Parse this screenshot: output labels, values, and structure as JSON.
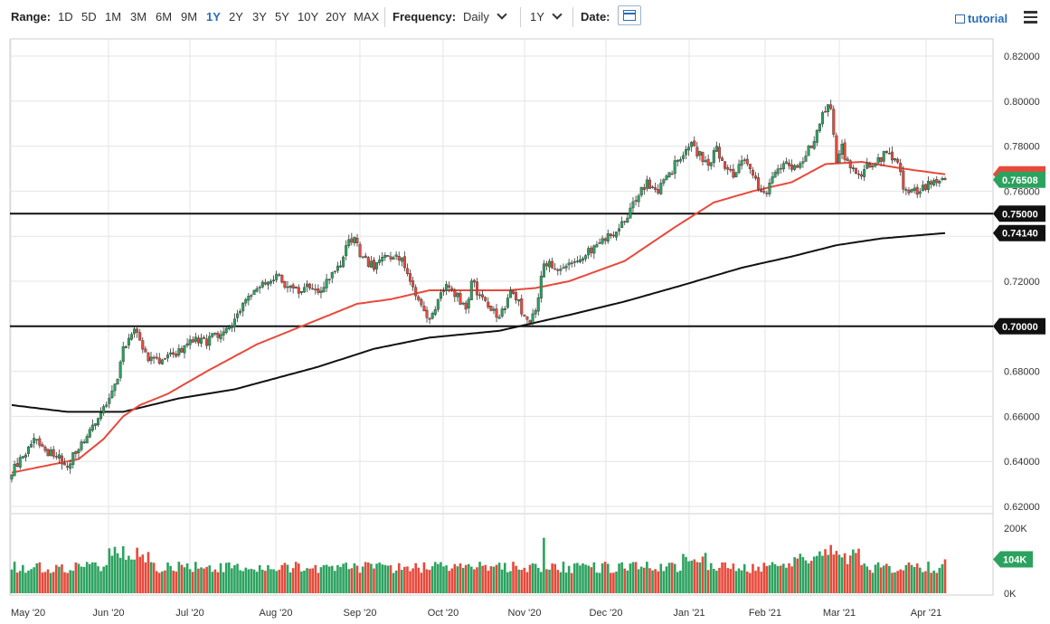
{
  "toolbar": {
    "range_label": "Range:",
    "ranges": [
      "1D",
      "5D",
      "1M",
      "3M",
      "6M",
      "9M",
      "1Y",
      "2Y",
      "3Y",
      "5Y",
      "10Y",
      "20Y",
      "MAX"
    ],
    "active_range": "1Y",
    "frequency_label": "Frequency:",
    "frequency_value": "Daily",
    "period_value": "1Y",
    "date_label": "Date:",
    "tutorial_label": "tutorial"
  },
  "colors": {
    "up": "#2ca25f",
    "down": "#e8493b",
    "ma50": "#e8493b",
    "ma200": "#111111",
    "grid": "#e4e4e4"
  },
  "chart_data": {
    "type": "candlestick",
    "ylim": [
      0.62,
      0.82
    ],
    "y_ticks": [
      "0.62000",
      "0.64000",
      "0.66000",
      "0.68000",
      "0.70000",
      "0.72000",
      "0.74000",
      "0.76000",
      "0.78000",
      "0.80000",
      "0.82000"
    ],
    "x_labels": [
      "May '20",
      "Jun '20",
      "Jul '20",
      "Aug '20",
      "Sep '20",
      "Oct '20",
      "Nov '20",
      "Dec '20",
      "Jan '21",
      "Feb '21",
      "Mar '21",
      "Apr '21"
    ],
    "price_anchors": [
      [
        0,
        0.635
      ],
      [
        8,
        0.65
      ],
      [
        13,
        0.644
      ],
      [
        20,
        0.639
      ],
      [
        26,
        0.65
      ],
      [
        32,
        0.66
      ],
      [
        36,
        0.67
      ],
      [
        38,
        0.678
      ],
      [
        40,
        0.69
      ],
      [
        44,
        0.699
      ],
      [
        46,
        0.695
      ],
      [
        49,
        0.685
      ],
      [
        53,
        0.684
      ],
      [
        57,
        0.687
      ],
      [
        61,
        0.69
      ],
      [
        66,
        0.695
      ],
      [
        70,
        0.693
      ],
      [
        73,
        0.696
      ],
      [
        78,
        0.7
      ],
      [
        84,
        0.712
      ],
      [
        90,
        0.718
      ],
      [
        96,
        0.722
      ],
      [
        101,
        0.715
      ],
      [
        106,
        0.718
      ],
      [
        110,
        0.715
      ],
      [
        114,
        0.722
      ],
      [
        118,
        0.728
      ],
      [
        120,
        0.736
      ],
      [
        123,
        0.738
      ],
      [
        126,
        0.73
      ],
      [
        130,
        0.727
      ],
      [
        134,
        0.73
      ],
      [
        137,
        0.731
      ],
      [
        140,
        0.73
      ],
      [
        143,
        0.72
      ],
      [
        146,
        0.71
      ],
      [
        149,
        0.704
      ],
      [
        152,
        0.707
      ],
      [
        155,
        0.717
      ],
      [
        158,
        0.716
      ],
      [
        160,
        0.713
      ],
      [
        163,
        0.708
      ],
      [
        165,
        0.72
      ],
      [
        168,
        0.713
      ],
      [
        171,
        0.708
      ],
      [
        175,
        0.704
      ],
      [
        179,
        0.715
      ],
      [
        182,
        0.71
      ],
      [
        185,
        0.702
      ],
      [
        188,
        0.706
      ],
      [
        191,
        0.728
      ],
      [
        194,
        0.727
      ],
      [
        198,
        0.726
      ],
      [
        202,
        0.729
      ],
      [
        206,
        0.733
      ],
      [
        209,
        0.734
      ],
      [
        212,
        0.737
      ],
      [
        216,
        0.742
      ],
      [
        220,
        0.748
      ],
      [
        224,
        0.756
      ],
      [
        228,
        0.764
      ],
      [
        232,
        0.76
      ],
      [
        235,
        0.765
      ],
      [
        238,
        0.772
      ],
      [
        242,
        0.778
      ],
      [
        244,
        0.78
      ],
      [
        247,
        0.776
      ],
      [
        250,
        0.773
      ],
      [
        253,
        0.778
      ],
      [
        256,
        0.772
      ],
      [
        259,
        0.768
      ],
      [
        262,
        0.774
      ],
      [
        265,
        0.769
      ],
      [
        268,
        0.762
      ],
      [
        271,
        0.76
      ],
      [
        274,
        0.767
      ],
      [
        278,
        0.772
      ],
      [
        281,
        0.77
      ],
      [
        284,
        0.773
      ],
      [
        287,
        0.781
      ],
      [
        289,
        0.786
      ],
      [
        291,
        0.795
      ],
      [
        294,
        0.798
      ],
      [
        296,
        0.772
      ],
      [
        298,
        0.779
      ],
      [
        300,
        0.773
      ],
      [
        302,
        0.77
      ],
      [
        305,
        0.766
      ],
      [
        307,
        0.771
      ],
      [
        310,
        0.771
      ],
      [
        313,
        0.777
      ],
      [
        315,
        0.776
      ],
      [
        318,
        0.774
      ],
      [
        320,
        0.762
      ],
      [
        322,
        0.759
      ],
      [
        325,
        0.76
      ],
      [
        328,
        0.762
      ],
      [
        331,
        0.765
      ],
      [
        333,
        0.766
      ],
      [
        335,
        0.765
      ]
    ],
    "last_close": 0.76508,
    "ma50_anchors": [
      [
        0,
        0.635
      ],
      [
        24,
        0.641
      ],
      [
        33,
        0.65
      ],
      [
        40,
        0.66
      ],
      [
        46,
        0.665
      ],
      [
        56,
        0.67
      ],
      [
        70,
        0.68
      ],
      [
        88,
        0.692
      ],
      [
        108,
        0.702
      ],
      [
        124,
        0.71
      ],
      [
        136,
        0.712
      ],
      [
        150,
        0.716
      ],
      [
        165,
        0.716
      ],
      [
        178,
        0.716
      ],
      [
        188,
        0.717
      ],
      [
        200,
        0.72
      ],
      [
        220,
        0.729
      ],
      [
        238,
        0.744
      ],
      [
        252,
        0.755
      ],
      [
        266,
        0.76
      ],
      [
        280,
        0.764
      ],
      [
        292,
        0.772
      ],
      [
        305,
        0.773
      ],
      [
        320,
        0.77
      ],
      [
        335,
        0.7675
      ]
    ],
    "ma200_anchors": [
      [
        0,
        0.665
      ],
      [
        20,
        0.662
      ],
      [
        40,
        0.662
      ],
      [
        60,
        0.668
      ],
      [
        80,
        0.672
      ],
      [
        110,
        0.682
      ],
      [
        130,
        0.69
      ],
      [
        150,
        0.695
      ],
      [
        175,
        0.698
      ],
      [
        200,
        0.705
      ],
      [
        220,
        0.711
      ],
      [
        240,
        0.718
      ],
      [
        262,
        0.726
      ],
      [
        280,
        0.731
      ],
      [
        296,
        0.736
      ],
      [
        312,
        0.739
      ],
      [
        335,
        0.7414
      ]
    ],
    "price_tags": [
      {
        "label": "0.76508",
        "value": 0.76508,
        "color": "#2ca25f"
      },
      {
        "label": "0.75000",
        "value": 0.75,
        "color": "#111111"
      },
      {
        "label": "0.74140",
        "value": 0.7414,
        "color": "#111111"
      },
      {
        "label": "0.70000",
        "value": 0.7,
        "color": "#111111"
      }
    ],
    "horizontal_lines": [
      0.75,
      0.7
    ],
    "volume": {
      "ylim": [
        0,
        230000
      ],
      "y_ticks": [
        "0K",
        "200K"
      ],
      "last_label": "104K",
      "last_value": 104000
    }
  }
}
